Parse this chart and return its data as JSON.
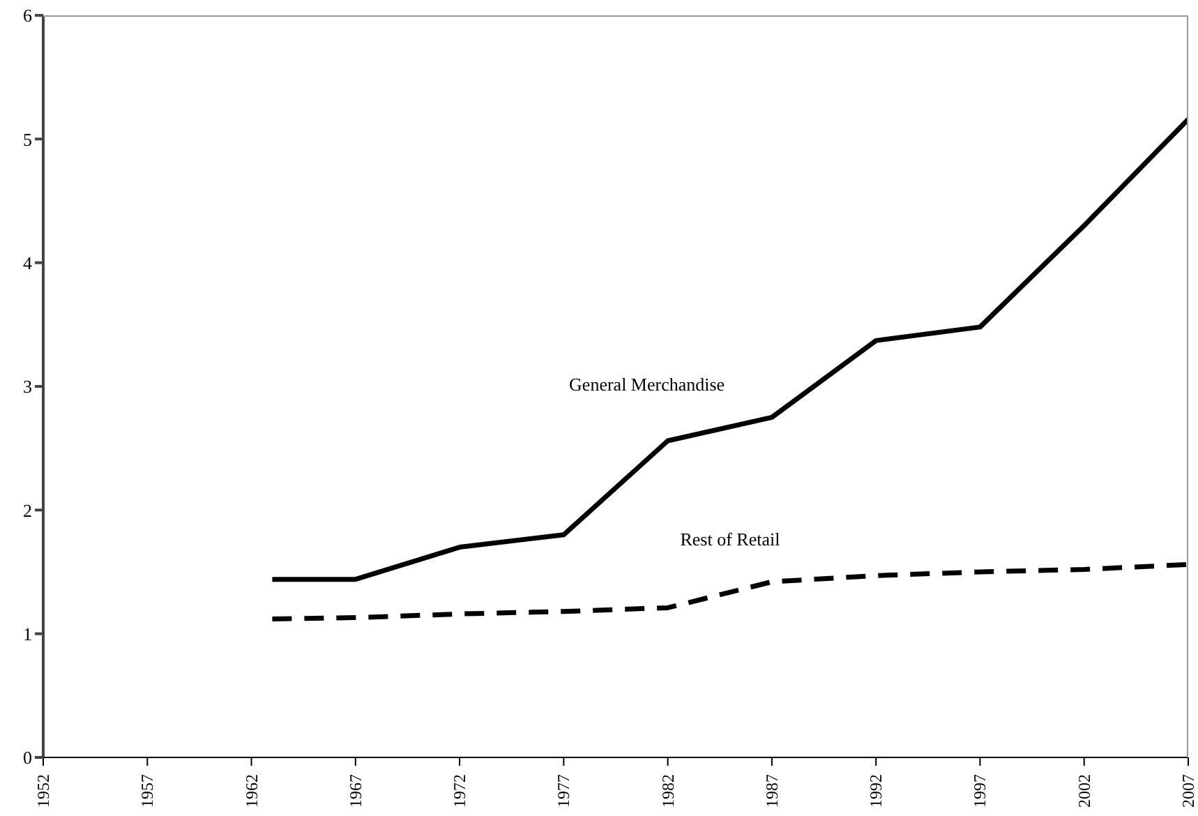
{
  "chart_data": {
    "type": "line",
    "x": [
      1963,
      1967,
      1972,
      1977,
      1982,
      1987,
      1992,
      1997,
      2002,
      2007
    ],
    "series": [
      {
        "name": "General Merchandise",
        "color": "#000000",
        "line_style": "solid",
        "values": [
          1.44,
          1.44,
          1.7,
          1.8,
          2.56,
          2.75,
          3.37,
          3.48,
          4.3,
          5.16
        ]
      },
      {
        "name": "Rest of Retail",
        "color": "#000000",
        "line_style": "dashed",
        "values": [
          1.12,
          1.13,
          1.16,
          1.18,
          1.21,
          1.42,
          1.47,
          1.5,
          1.52,
          1.56
        ]
      }
    ],
    "xlim": [
      1952,
      2007
    ],
    "xticks": [
      1952,
      1957,
      1962,
      1967,
      1972,
      1977,
      1982,
      1987,
      1992,
      1997,
      2002,
      2007
    ],
    "ylim": [
      0,
      6
    ],
    "yticks": [
      0,
      1,
      2,
      3,
      4,
      5,
      6
    ],
    "marker": "none"
  }
}
